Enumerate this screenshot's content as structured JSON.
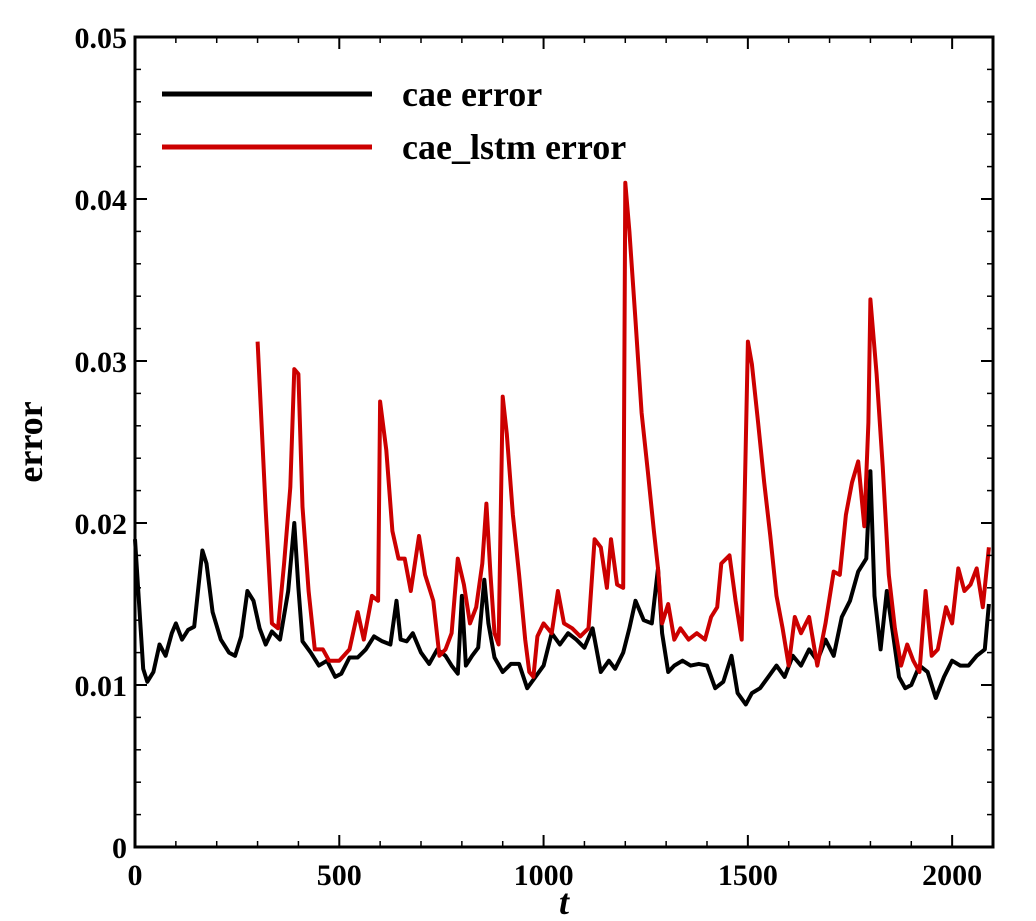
{
  "chart_data": {
    "type": "line",
    "xlabel": "t",
    "ylabel": "error",
    "xlim": [
      0,
      2100
    ],
    "ylim": [
      0,
      0.05
    ],
    "x_ticks": [
      0,
      500,
      1000,
      1500,
      2000
    ],
    "x_tick_labels": [
      "0",
      "500",
      "1000",
      "1500",
      "2000"
    ],
    "y_ticks": [
      0,
      0.01,
      0.02,
      0.03,
      0.04,
      0.05
    ],
    "y_tick_labels": [
      "0",
      "0.01",
      "0.02",
      "0.03",
      "0.04",
      "0.05"
    ],
    "grid": false,
    "legend_position": "top-left",
    "series": [
      {
        "name": "cae error",
        "color": "#000000",
        "points": [
          [
            0,
            0.019
          ],
          [
            10,
            0.015
          ],
          [
            20,
            0.011
          ],
          [
            30,
            0.0102
          ],
          [
            45,
            0.0108
          ],
          [
            60,
            0.0125
          ],
          [
            75,
            0.0118
          ],
          [
            90,
            0.0132
          ],
          [
            100,
            0.0138
          ],
          [
            115,
            0.0128
          ],
          [
            130,
            0.0134
          ],
          [
            145,
            0.0136
          ],
          [
            160,
            0.0172
          ],
          [
            165,
            0.0183
          ],
          [
            175,
            0.0175
          ],
          [
            190,
            0.0145
          ],
          [
            210,
            0.0128
          ],
          [
            230,
            0.012
          ],
          [
            245,
            0.0118
          ],
          [
            260,
            0.013
          ],
          [
            275,
            0.0158
          ],
          [
            290,
            0.0152
          ],
          [
            305,
            0.0135
          ],
          [
            320,
            0.0125
          ],
          [
            335,
            0.0133
          ],
          [
            355,
            0.0128
          ],
          [
            375,
            0.0158
          ],
          [
            390,
            0.02
          ],
          [
            400,
            0.016
          ],
          [
            410,
            0.0127
          ],
          [
            430,
            0.012
          ],
          [
            450,
            0.0112
          ],
          [
            470,
            0.0115
          ],
          [
            490,
            0.0105
          ],
          [
            505,
            0.0107
          ],
          [
            525,
            0.0117
          ],
          [
            545,
            0.0117
          ],
          [
            565,
            0.0122
          ],
          [
            585,
            0.013
          ],
          [
            605,
            0.0127
          ],
          [
            625,
            0.0125
          ],
          [
            640,
            0.0152
          ],
          [
            650,
            0.0128
          ],
          [
            665,
            0.0127
          ],
          [
            680,
            0.0132
          ],
          [
            700,
            0.012
          ],
          [
            720,
            0.0113
          ],
          [
            740,
            0.0122
          ],
          [
            760,
            0.0118
          ],
          [
            775,
            0.0112
          ],
          [
            790,
            0.0107
          ],
          [
            800,
            0.0155
          ],
          [
            810,
            0.0112
          ],
          [
            825,
            0.0118
          ],
          [
            840,
            0.0123
          ],
          [
            855,
            0.0165
          ],
          [
            865,
            0.0138
          ],
          [
            880,
            0.0117
          ],
          [
            900,
            0.0108
          ],
          [
            920,
            0.0113
          ],
          [
            940,
            0.0113
          ],
          [
            960,
            0.0098
          ],
          [
            980,
            0.0105
          ],
          [
            1000,
            0.0112
          ],
          [
            1020,
            0.0132
          ],
          [
            1040,
            0.0125
          ],
          [
            1060,
            0.0132
          ],
          [
            1080,
            0.0128
          ],
          [
            1100,
            0.0123
          ],
          [
            1120,
            0.0135
          ],
          [
            1140,
            0.0108
          ],
          [
            1160,
            0.0115
          ],
          [
            1175,
            0.011
          ],
          [
            1185,
            0.0115
          ],
          [
            1195,
            0.012
          ],
          [
            1210,
            0.0135
          ],
          [
            1225,
            0.0152
          ],
          [
            1245,
            0.014
          ],
          [
            1265,
            0.0138
          ],
          [
            1280,
            0.0172
          ],
          [
            1290,
            0.0132
          ],
          [
            1305,
            0.0108
          ],
          [
            1320,
            0.0112
          ],
          [
            1340,
            0.0115
          ],
          [
            1360,
            0.0112
          ],
          [
            1380,
            0.0113
          ],
          [
            1400,
            0.0112
          ],
          [
            1420,
            0.0098
          ],
          [
            1440,
            0.0102
          ],
          [
            1460,
            0.0118
          ],
          [
            1475,
            0.0095
          ],
          [
            1495,
            0.0088
          ],
          [
            1510,
            0.0095
          ],
          [
            1530,
            0.0098
          ],
          [
            1550,
            0.0105
          ],
          [
            1570,
            0.0112
          ],
          [
            1590,
            0.0105
          ],
          [
            1610,
            0.0118
          ],
          [
            1630,
            0.0112
          ],
          [
            1650,
            0.0122
          ],
          [
            1670,
            0.0115
          ],
          [
            1690,
            0.0128
          ],
          [
            1710,
            0.0118
          ],
          [
            1730,
            0.0142
          ],
          [
            1750,
            0.0152
          ],
          [
            1770,
            0.017
          ],
          [
            1790,
            0.0178
          ],
          [
            1800,
            0.0232
          ],
          [
            1810,
            0.0155
          ],
          [
            1825,
            0.0122
          ],
          [
            1840,
            0.0158
          ],
          [
            1855,
            0.0132
          ],
          [
            1870,
            0.0105
          ],
          [
            1885,
            0.0098
          ],
          [
            1900,
            0.01
          ],
          [
            1920,
            0.0112
          ],
          [
            1940,
            0.0108
          ],
          [
            1960,
            0.0092
          ],
          [
            1980,
            0.0105
          ],
          [
            2000,
            0.0115
          ],
          [
            2020,
            0.0112
          ],
          [
            2040,
            0.0112
          ],
          [
            2060,
            0.0118
          ],
          [
            2080,
            0.0122
          ],
          [
            2090,
            0.015
          ]
        ]
      },
      {
        "name": "cae_lstm error",
        "color": "#cc0000",
        "points": [
          [
            300,
            0.0312
          ],
          [
            320,
            0.0208
          ],
          [
            335,
            0.0138
          ],
          [
            350,
            0.0135
          ],
          [
            365,
            0.0175
          ],
          [
            380,
            0.0222
          ],
          [
            390,
            0.0295
          ],
          [
            400,
            0.0292
          ],
          [
            410,
            0.021
          ],
          [
            425,
            0.0158
          ],
          [
            440,
            0.0122
          ],
          [
            460,
            0.0122
          ],
          [
            475,
            0.0115
          ],
          [
            500,
            0.0115
          ],
          [
            525,
            0.0122
          ],
          [
            545,
            0.0145
          ],
          [
            560,
            0.0128
          ],
          [
            580,
            0.0155
          ],
          [
            595,
            0.0152
          ],
          [
            600,
            0.0275
          ],
          [
            615,
            0.0245
          ],
          [
            630,
            0.0195
          ],
          [
            645,
            0.0178
          ],
          [
            660,
            0.0178
          ],
          [
            675,
            0.0158
          ],
          [
            695,
            0.0192
          ],
          [
            710,
            0.0168
          ],
          [
            730,
            0.0152
          ],
          [
            745,
            0.0118
          ],
          [
            760,
            0.0122
          ],
          [
            775,
            0.0132
          ],
          [
            790,
            0.0178
          ],
          [
            805,
            0.0162
          ],
          [
            820,
            0.0138
          ],
          [
            835,
            0.0148
          ],
          [
            850,
            0.0175
          ],
          [
            860,
            0.0212
          ],
          [
            870,
            0.0168
          ],
          [
            880,
            0.0132
          ],
          [
            890,
            0.0125
          ],
          [
            900,
            0.0278
          ],
          [
            910,
            0.0255
          ],
          [
            925,
            0.0205
          ],
          [
            940,
            0.0168
          ],
          [
            955,
            0.0128
          ],
          [
            965,
            0.0108
          ],
          [
            975,
            0.0105
          ],
          [
            985,
            0.013
          ],
          [
            1000,
            0.0138
          ],
          [
            1020,
            0.0132
          ],
          [
            1035,
            0.0158
          ],
          [
            1050,
            0.0138
          ],
          [
            1070,
            0.0135
          ],
          [
            1090,
            0.013
          ],
          [
            1110,
            0.0135
          ],
          [
            1125,
            0.019
          ],
          [
            1140,
            0.0185
          ],
          [
            1155,
            0.016
          ],
          [
            1165,
            0.019
          ],
          [
            1180,
            0.0162
          ],
          [
            1195,
            0.016
          ],
          [
            1200,
            0.041
          ],
          [
            1210,
            0.038
          ],
          [
            1225,
            0.0325
          ],
          [
            1240,
            0.0268
          ],
          [
            1255,
            0.0232
          ],
          [
            1270,
            0.0195
          ],
          [
            1280,
            0.0172
          ],
          [
            1290,
            0.0138
          ],
          [
            1305,
            0.015
          ],
          [
            1320,
            0.0128
          ],
          [
            1335,
            0.0135
          ],
          [
            1355,
            0.0128
          ],
          [
            1375,
            0.0132
          ],
          [
            1395,
            0.0128
          ],
          [
            1410,
            0.0142
          ],
          [
            1425,
            0.0148
          ],
          [
            1435,
            0.0175
          ],
          [
            1455,
            0.018
          ],
          [
            1470,
            0.0152
          ],
          [
            1485,
            0.0128
          ],
          [
            1500,
            0.0312
          ],
          [
            1510,
            0.0298
          ],
          [
            1525,
            0.0262
          ],
          [
            1540,
            0.0225
          ],
          [
            1555,
            0.0192
          ],
          [
            1570,
            0.0155
          ],
          [
            1585,
            0.0135
          ],
          [
            1600,
            0.0112
          ],
          [
            1615,
            0.0142
          ],
          [
            1630,
            0.0132
          ],
          [
            1650,
            0.0142
          ],
          [
            1670,
            0.0112
          ],
          [
            1690,
            0.0138
          ],
          [
            1710,
            0.017
          ],
          [
            1725,
            0.0168
          ],
          [
            1740,
            0.0205
          ],
          [
            1755,
            0.0225
          ],
          [
            1770,
            0.0238
          ],
          [
            1785,
            0.0198
          ],
          [
            1795,
            0.0262
          ],
          [
            1800,
            0.0338
          ],
          [
            1815,
            0.0292
          ],
          [
            1830,
            0.0235
          ],
          [
            1845,
            0.0168
          ],
          [
            1860,
            0.0135
          ],
          [
            1875,
            0.0112
          ],
          [
            1890,
            0.0125
          ],
          [
            1905,
            0.0115
          ],
          [
            1920,
            0.0108
          ],
          [
            1935,
            0.0158
          ],
          [
            1950,
            0.0118
          ],
          [
            1965,
            0.0122
          ],
          [
            1985,
            0.0148
          ],
          [
            2000,
            0.0138
          ],
          [
            2015,
            0.0172
          ],
          [
            2030,
            0.0158
          ],
          [
            2045,
            0.0162
          ],
          [
            2060,
            0.0172
          ],
          [
            2075,
            0.0148
          ],
          [
            2090,
            0.0185
          ]
        ]
      }
    ]
  }
}
